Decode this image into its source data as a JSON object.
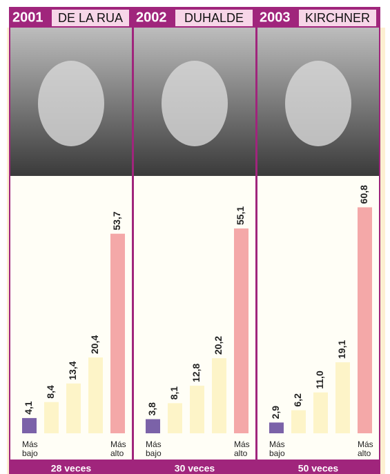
{
  "chart_data": [
    {
      "type": "bar",
      "title": "2001",
      "subtitle": "DE LA RUA",
      "categories": [
        "Más bajo",
        null,
        null,
        null,
        "Más alto"
      ],
      "values": [
        4.1,
        8.4,
        13.4,
        20.4,
        53.7
      ],
      "value_labels": [
        "4,1",
        "8,4",
        "13,4",
        "20,4",
        "53,7"
      ],
      "colors": [
        "#7b62a8",
        "#fdf4c8",
        "#fdf4c8",
        "#fdf4c8",
        "#f4a8a8"
      ],
      "ylim": [
        0,
        62
      ],
      "note": "28 veces"
    },
    {
      "type": "bar",
      "title": "2002",
      "subtitle": "DUHALDE",
      "categories": [
        "Más bajo",
        null,
        null,
        null,
        "Más alto"
      ],
      "values": [
        3.8,
        8.1,
        12.8,
        20.2,
        55.1
      ],
      "value_labels": [
        "3,8",
        "8,1",
        "12,8",
        "20,2",
        "55,1"
      ],
      "colors": [
        "#7b62a8",
        "#fdf4c8",
        "#fdf4c8",
        "#fdf4c8",
        "#f4a8a8"
      ],
      "ylim": [
        0,
        62
      ],
      "note": "30 veces"
    },
    {
      "type": "bar",
      "title": "2003",
      "subtitle": "KIRCHNER",
      "categories": [
        "Más bajo",
        null,
        null,
        null,
        "Más alto"
      ],
      "values": [
        2.9,
        6.2,
        11.0,
        19.1,
        60.8
      ],
      "value_labels": [
        "2,9",
        "6,2",
        "11,0",
        "19,1",
        "60,8"
      ],
      "colors": [
        "#7b62a8",
        "#fdf4c8",
        "#fdf4c8",
        "#fdf4c8",
        "#f4a8a8"
      ],
      "ylim": [
        0,
        62
      ],
      "note": "50 veces"
    }
  ]
}
